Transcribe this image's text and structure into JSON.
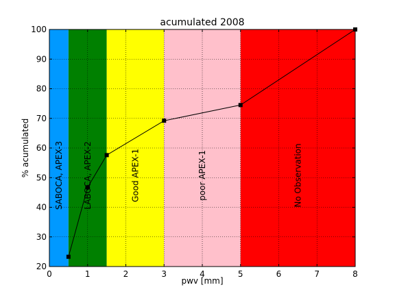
{
  "chart_data": {
    "type": "line",
    "title": "acumulated 2008",
    "xlabel": "pwv [mm]",
    "ylabel": "% acumulated",
    "xlim": [
      0,
      8
    ],
    "ylim": [
      20,
      100
    ],
    "xticks": [
      0,
      1,
      2,
      3,
      4,
      5,
      6,
      7,
      8
    ],
    "yticks": [
      20,
      30,
      40,
      50,
      60,
      70,
      80,
      90,
      100
    ],
    "grid": true,
    "grid_style": "dotted",
    "series": [
      {
        "x": [
          0.5,
          1.0,
          1.5,
          3.0,
          5.0,
          8.0
        ],
        "y": [
          23.3,
          46.7,
          57.6,
          69.2,
          74.5,
          100.0
        ],
        "markers": [
          "square",
          "circle",
          "square",
          "square",
          "square",
          "square"
        ],
        "color": "#000000"
      }
    ],
    "bands": [
      {
        "x0": 0.0,
        "x1": 0.5,
        "color": "#0099ff",
        "label": "SABOCA, APEX-3"
      },
      {
        "x0": 0.5,
        "x1": 1.5,
        "color": "#008000",
        "label": "LABOCA, APEX-2"
      },
      {
        "x0": 1.5,
        "x1": 3.0,
        "color": "#ffff00",
        "label": "Good  APEX-1"
      },
      {
        "x0": 3.0,
        "x1": 5.0,
        "color": "#ffc0cb",
        "label": "poor  APEX-1"
      },
      {
        "x0": 5.0,
        "x1": 8.0,
        "color": "#ff0000",
        "label": "No Observation"
      }
    ]
  }
}
